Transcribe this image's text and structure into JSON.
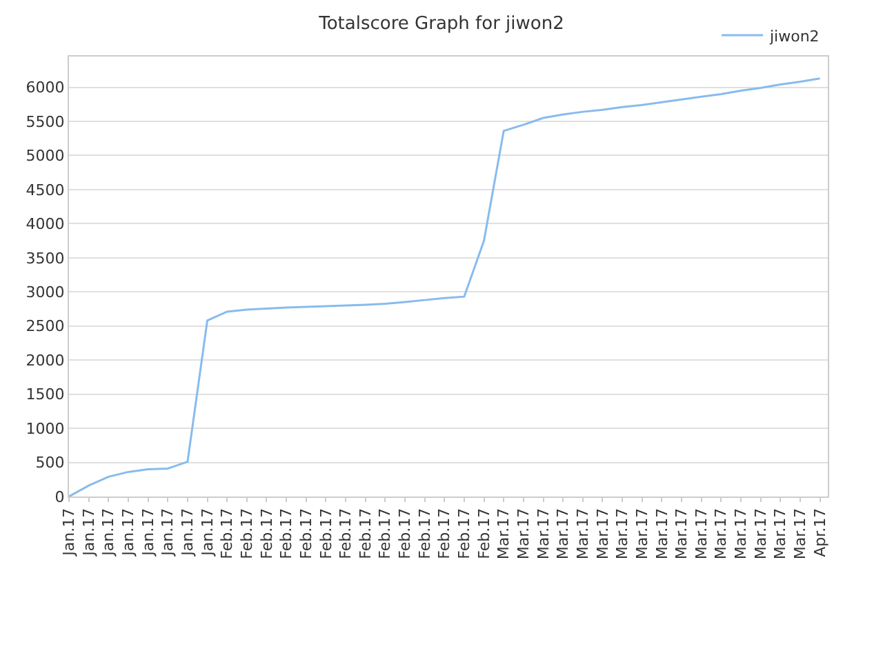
{
  "chart_data": {
    "type": "line",
    "title": "Totalscore Graph for jiwon2",
    "categories": [
      "Jan.17",
      "Jan.17",
      "Jan.17",
      "Jan.17",
      "Jan.17",
      "Jan.17",
      "Jan.17",
      "Jan.17",
      "Feb.17",
      "Feb.17",
      "Feb.17",
      "Feb.17",
      "Feb.17",
      "Feb.17",
      "Feb.17",
      "Feb.17",
      "Feb.17",
      "Feb.17",
      "Feb.17",
      "Feb.17",
      "Feb.17",
      "Feb.17",
      "Mar.17",
      "Mar.17",
      "Mar.17",
      "Mar.17",
      "Mar.17",
      "Mar.17",
      "Mar.17",
      "Mar.17",
      "Mar.17",
      "Mar.17",
      "Mar.17",
      "Mar.17",
      "Mar.17",
      "Mar.17",
      "Mar.17",
      "Mar.17",
      "Apr.17"
    ],
    "series": [
      {
        "name": "jiwon2",
        "color": "#88bbee",
        "values": [
          0,
          160,
          290,
          360,
          400,
          410,
          510,
          2580,
          2710,
          2740,
          2755,
          2770,
          2780,
          2790,
          2800,
          2810,
          2825,
          2850,
          2880,
          2910,
          2930,
          3750,
          5360,
          5450,
          5550,
          5600,
          5640,
          5670,
          5710,
          5740,
          5780,
          5820,
          5860,
          5900,
          5950,
          5990,
          6040,
          6080,
          6130
        ]
      }
    ],
    "ylim": [
      0,
      6450
    ],
    "yticks": [
      0,
      500,
      1000,
      1500,
      2000,
      2500,
      3000,
      3500,
      4000,
      4500,
      5000,
      5500,
      6000
    ],
    "grid": "y",
    "legend": "top right",
    "marker": "none",
    "line_style": "solid"
  }
}
